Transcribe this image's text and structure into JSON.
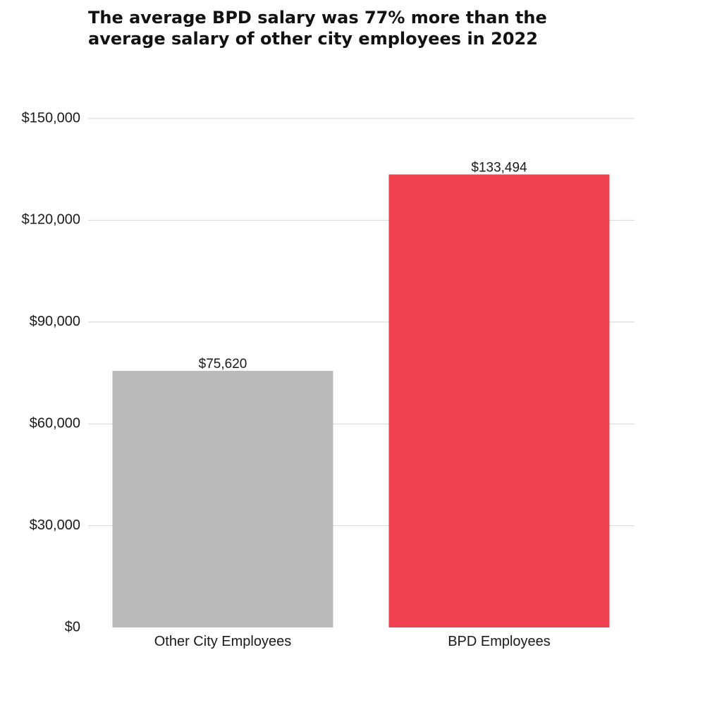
{
  "chart_data": {
    "type": "bar",
    "title_lines": [
      "The average BPD salary was 77% more than the",
      "average salary of other city employees in 2022"
    ],
    "categories": [
      "Other City Employees",
      "BPD Employees"
    ],
    "values": [
      75620,
      133494
    ],
    "value_labels": [
      "$75,620",
      "$133,494"
    ],
    "bar_colors": [
      "#bbbbbb",
      "#ef4050"
    ],
    "ylim": [
      0,
      150000
    ],
    "yticks": [
      0,
      30000,
      60000,
      90000,
      120000,
      150000
    ],
    "ytick_labels": [
      "$0",
      "$30,000",
      "$60,000",
      "$90,000",
      "$120,000",
      "$150,000"
    ],
    "xlabel": "",
    "ylabel": "",
    "grid": true,
    "legend": "none"
  }
}
